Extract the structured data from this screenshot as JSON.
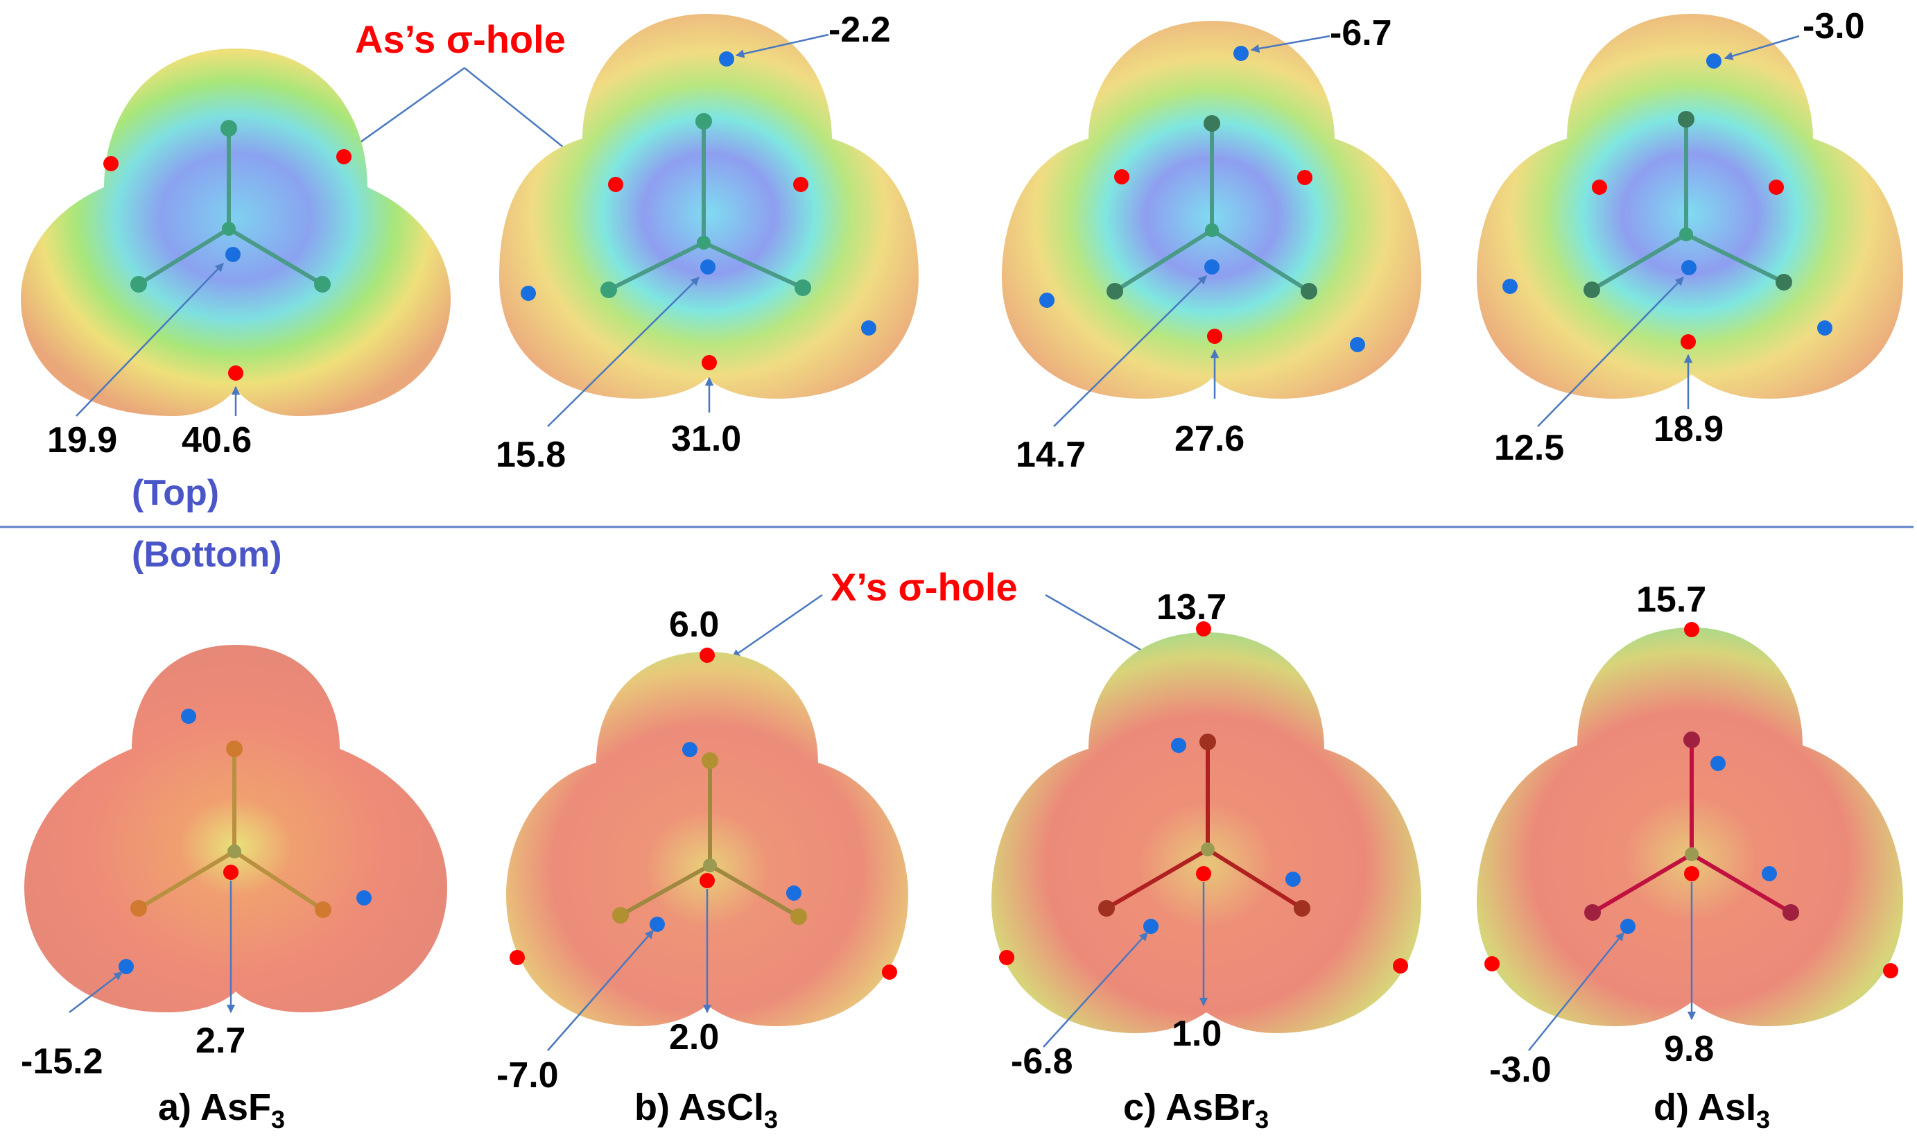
{
  "annotations": {
    "as_sigma_hole": "As’s σ-hole",
    "x_sigma_hole": "X’s σ-hole",
    "top_label": "(Top)",
    "bottom_label": "(Bottom)"
  },
  "colors": {
    "annotation_red": "#ff0000",
    "section_blue": "#4a56c8",
    "divider": "#5b7fc4",
    "point_red": "#ff0000",
    "point_blue": "#1a6fe0",
    "arrow": "#4a78c0"
  },
  "panels": [
    {
      "id": "a",
      "caption_prefix": "a) AsF",
      "caption_subscript": "3",
      "halogen_symbol": "F",
      "top_values": {
        "center": "19.9",
        "bottom_lobe": "40.6"
      },
      "bottom_values": {
        "center": "2.7",
        "side": "-15.2"
      }
    },
    {
      "id": "b",
      "caption_prefix": "b) AsCl",
      "caption_subscript": "3",
      "halogen_symbol": "Cl",
      "top_values": {
        "center": "15.8",
        "bottom_lobe": "31.0",
        "top_lobe": "-2.2"
      },
      "bottom_values": {
        "center": "2.0",
        "side": "-7.0",
        "top_lobe": "6.0"
      }
    },
    {
      "id": "c",
      "caption_prefix": "c) AsBr",
      "caption_subscript": "3",
      "halogen_symbol": "Br",
      "top_values": {
        "center": "14.7",
        "bottom_lobe": "27.6",
        "top_lobe": "-6.7"
      },
      "bottom_values": {
        "center": "1.0",
        "side": "-6.8",
        "top_lobe": "13.7"
      }
    },
    {
      "id": "d",
      "caption_prefix": "d) AsI",
      "caption_subscript": "3",
      "halogen_symbol": "I",
      "top_values": {
        "center": "12.5",
        "bottom_lobe": "18.9",
        "top_lobe": "-3.0"
      },
      "bottom_values": {
        "center": "9.8",
        "side": "-3.0",
        "top_lobe": "15.7"
      }
    }
  ]
}
